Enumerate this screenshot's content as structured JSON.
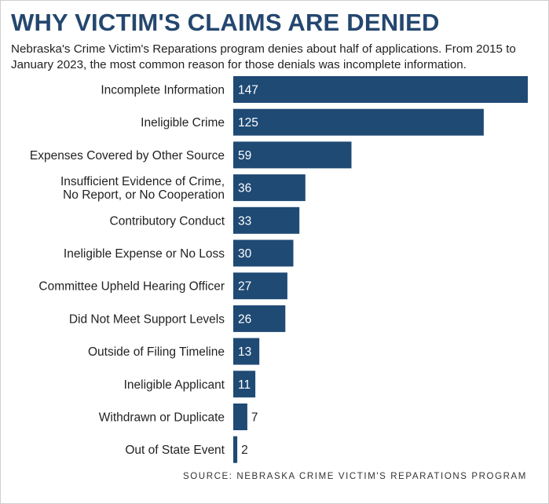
{
  "title": "WHY VICTIM'S CLAIMS ARE DENIED",
  "subtitle": "Nebraska's Crime Victim's Reparations program denies about half of applications. From 2015 to January 2023, the most common reason for those denials was incomplete information.",
  "source": "SOURCE: NEBRASKA CRIME VICTIM'S REPARATIONS PROGRAM",
  "colors": {
    "bar": "#1f4a74",
    "title": "#24476f"
  },
  "chart_data": {
    "type": "bar",
    "orientation": "horizontal",
    "categories": [
      [
        "Incomplete Information"
      ],
      [
        "Ineligible Crime"
      ],
      [
        "Expenses Covered by Other Source"
      ],
      [
        "Insufficient Evidence of Crime,",
        "No Report, or No Cooperation"
      ],
      [
        "Contributory Conduct"
      ],
      [
        "Ineligible Expense or No Loss"
      ],
      [
        "Committee Upheld Hearing Officer"
      ],
      [
        "Did Not Meet Support Levels"
      ],
      [
        "Outside of Filing Timeline"
      ],
      [
        "Ineligible Applicant"
      ],
      [
        "Withdrawn or Duplicate"
      ],
      [
        "Out of State Event"
      ]
    ],
    "values": [
      147,
      125,
      59,
      36,
      33,
      30,
      27,
      26,
      13,
      11,
      7,
      2
    ],
    "xlim": [
      0,
      147
    ],
    "grid": false,
    "legend": "none"
  }
}
